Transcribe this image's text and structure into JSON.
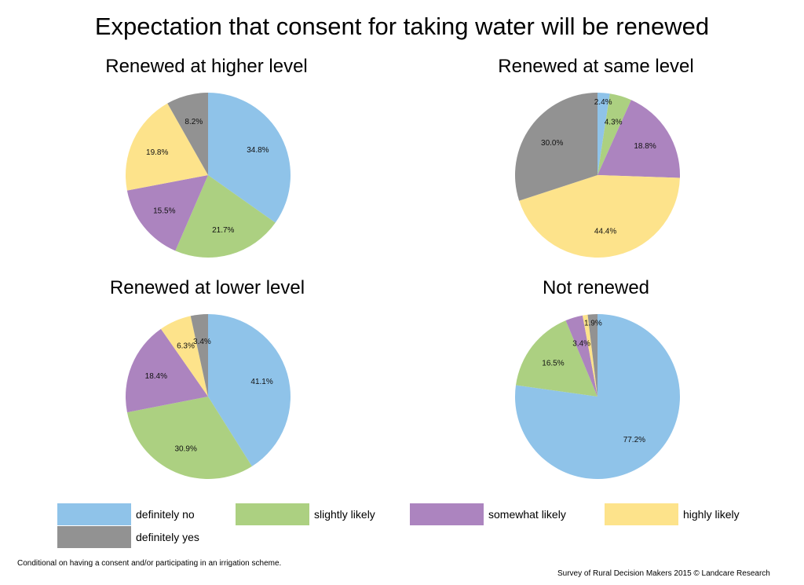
{
  "title": "Expectation that consent for taking water will be renewed",
  "colors": {
    "definitely_no": "#8fc3e9",
    "slightly_likely": "#acd081",
    "somewhat_likely": "#ac84bf",
    "highly_likely": "#fde38b",
    "definitely_yes": "#929292"
  },
  "legend": [
    {
      "label": "definitely no",
      "color": "#8fc3e9"
    },
    {
      "label": "slightly likely",
      "color": "#acd081"
    },
    {
      "label": "somewhat likely",
      "color": "#ac84bf"
    },
    {
      "label": "highly likely",
      "color": "#fde38b"
    },
    {
      "label": "definitely yes",
      "color": "#929292"
    }
  ],
  "chart_data": [
    {
      "type": "pie",
      "title": "Renewed at higher level",
      "categories": [
        "definitely no",
        "slightly likely",
        "somewhat likely",
        "highly likely",
        "definitely yes"
      ],
      "values": [
        34.8,
        21.7,
        15.5,
        19.8,
        8.2
      ],
      "labels": [
        "34.8%",
        "21.7%",
        "15.5%",
        "19.8%",
        "8.2%"
      ]
    },
    {
      "type": "pie",
      "title": "Renewed at same level",
      "categories": [
        "definitely no",
        "slightly likely",
        "somewhat likely",
        "highly likely",
        "definitely yes"
      ],
      "values": [
        2.4,
        4.3,
        18.8,
        44.4,
        30.0
      ],
      "labels": [
        "2.4%",
        "4.3%",
        "18.8%",
        "44.4%",
        "30.0%"
      ]
    },
    {
      "type": "pie",
      "title": "Renewed at lower level",
      "categories": [
        "definitely no",
        "slightly likely",
        "somewhat likely",
        "highly likely",
        "definitely yes"
      ],
      "values": [
        41.1,
        30.9,
        18.4,
        6.3,
        3.4
      ],
      "labels": [
        "41.1%",
        "30.9%",
        "18.4%",
        "6.3%",
        "3.4%"
      ]
    },
    {
      "type": "pie",
      "title": "Not renewed",
      "categories": [
        "definitely no",
        "slightly likely",
        "somewhat likely",
        "highly likely",
        "definitely yes"
      ],
      "values": [
        77.2,
        16.5,
        3.4,
        1.0,
        1.9
      ],
      "labels": [
        "77.2%",
        "16.5%",
        "3.4%",
        "",
        "1.9%"
      ]
    }
  ],
  "footnote": "Conditional on having a consent and/or participating in an irrigation scheme.",
  "source": "Survey of Rural Decision Makers 2015 © Landcare Research"
}
